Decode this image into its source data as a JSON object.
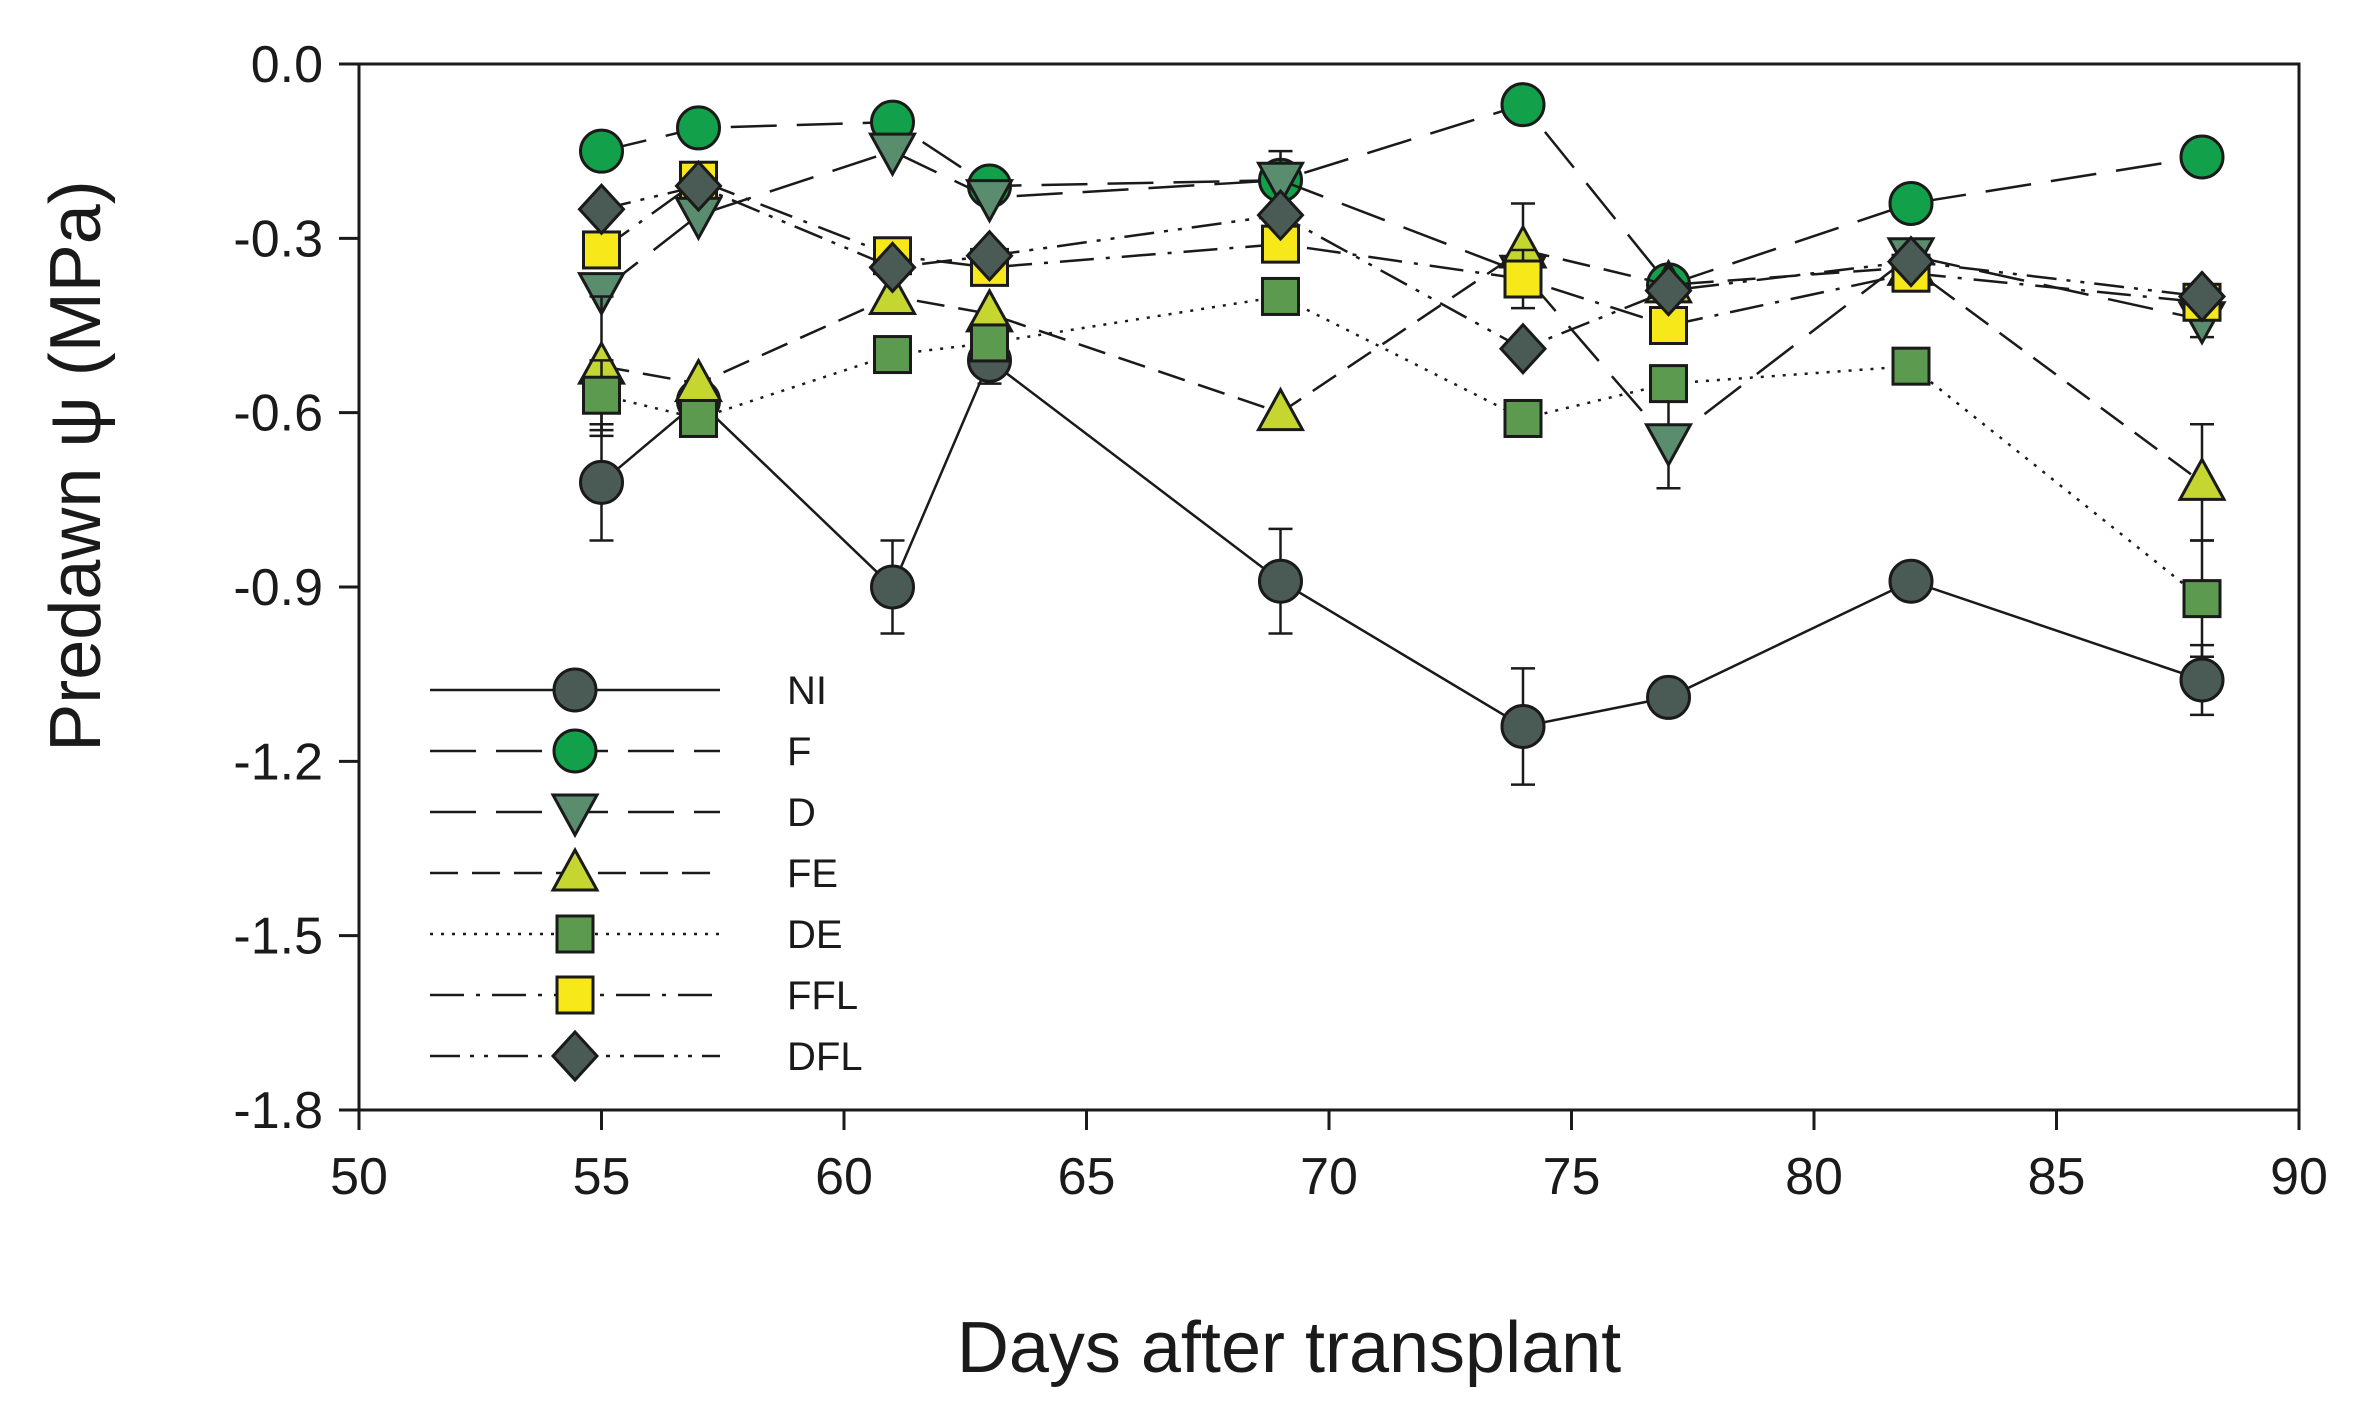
{
  "chart_data": {
    "type": "line",
    "title": "",
    "xlabel": "Days after transplant",
    "ylabel": "Predawn ψ (MPa)",
    "xlim": [
      50,
      90
    ],
    "ylim": [
      -1.8,
      0.0
    ],
    "xticks": [
      50,
      55,
      60,
      65,
      70,
      75,
      80,
      85,
      90
    ],
    "xtick_labels": [
      "50",
      "55",
      "60",
      "65",
      "70",
      "75",
      "80",
      "85",
      "90"
    ],
    "yticks": [
      0.0,
      -0.3,
      -0.6,
      -0.9,
      -1.2,
      -1.5,
      -1.8
    ],
    "ytick_labels": [
      "0.0",
      "-0.3",
      "-0.6",
      "-0.9",
      "-1.2",
      "-1.5",
      "-1.8"
    ],
    "grid": false,
    "legend_position": "lower-left",
    "x": [
      55,
      57,
      61,
      63,
      69,
      74,
      77,
      82,
      88
    ],
    "series": [
      {
        "name": "NI",
        "marker": "circle",
        "color": "#4a5a55",
        "dash": "solid",
        "values": [
          -0.72,
          -0.58,
          -0.9,
          -0.51,
          -0.89,
          -1.14,
          -1.09,
          -0.89,
          -1.06
        ],
        "errors": [
          0.1,
          0.0,
          0.08,
          0.04,
          0.09,
          0.1,
          0.03,
          0.0,
          0.06
        ]
      },
      {
        "name": "F",
        "marker": "circle",
        "color": "#12a04a",
        "dash": "long-dash",
        "values": [
          -0.15,
          -0.11,
          -0.1,
          -0.21,
          -0.2,
          -0.07,
          -0.38,
          -0.24,
          -0.16
        ],
        "errors": [
          0,
          0,
          0,
          0,
          0,
          0,
          0,
          0,
          0
        ]
      },
      {
        "name": "D",
        "marker": "triangle-down",
        "color": "#5a8c6e",
        "dash": "long-dash",
        "values": [
          -0.39,
          -0.26,
          -0.15,
          -0.23,
          -0.2,
          -0.36,
          -0.65,
          -0.33,
          -0.44
        ],
        "errors": [
          0,
          0,
          0,
          0,
          0.05,
          0,
          0.08,
          0,
          0.03
        ]
      },
      {
        "name": "FE",
        "marker": "triangle-up",
        "color": "#c6d630",
        "dash": "medium-dash",
        "values": [
          -0.52,
          -0.55,
          -0.4,
          -0.43,
          -0.6,
          -0.32,
          -0.38,
          -0.35,
          -0.72
        ],
        "errors": [
          0.12,
          0,
          0,
          0,
          0,
          0.08,
          0,
          0,
          0.1
        ]
      },
      {
        "name": "DE",
        "marker": "square",
        "color": "#5c9a50",
        "dash": "dotted",
        "values": [
          -0.57,
          -0.61,
          -0.5,
          -0.48,
          -0.4,
          -0.61,
          -0.55,
          -0.52,
          -0.92
        ],
        "errors": [
          0.06,
          0,
          0,
          0,
          0,
          0,
          0,
          0,
          0.1
        ]
      },
      {
        "name": "FFL",
        "marker": "square",
        "color": "#f7e81a",
        "dash": "dash-dot",
        "values": [
          -0.32,
          -0.2,
          -0.33,
          -0.35,
          -0.31,
          -0.37,
          -0.45,
          -0.36,
          -0.41
        ],
        "errors": [
          0,
          0,
          0,
          0,
          0,
          0.05,
          0,
          0,
          0
        ]
      },
      {
        "name": "DFL",
        "marker": "diamond",
        "color": "#4a5a55",
        "dash": "dash-dot-dot",
        "values": [
          -0.25,
          -0.21,
          -0.35,
          -0.33,
          -0.26,
          -0.49,
          -0.39,
          -0.34,
          -0.4
        ],
        "errors": [
          0,
          0,
          0,
          0,
          0,
          0,
          0,
          0,
          0
        ]
      }
    ]
  }
}
